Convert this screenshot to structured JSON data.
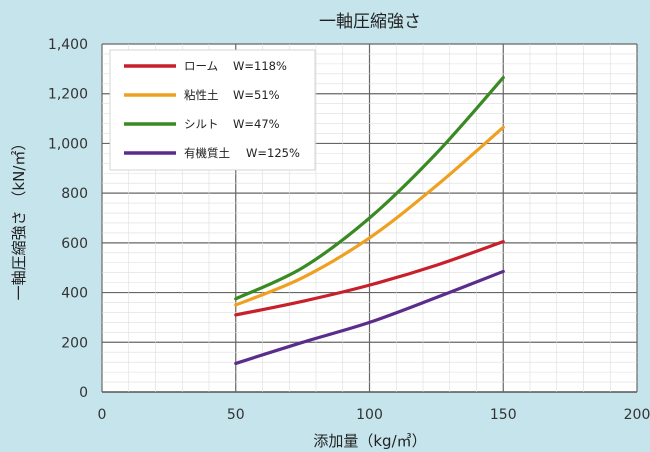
{
  "chart_data": {
    "type": "line",
    "title": "一軸圧縮強さ",
    "xlabel": "添加量（kg/㎥）",
    "ylabel": "一軸圧縮強さ （kN/㎡）",
    "xlim": [
      0,
      200
    ],
    "ylim": [
      0,
      1400
    ],
    "x_ticks": [
      "0",
      "50",
      "100",
      "150",
      "200"
    ],
    "y_ticks": [
      "0",
      "200",
      "400",
      "600",
      "800",
      "1,000",
      "1,200",
      "1,400"
    ],
    "grid": true,
    "legend_position": "top-left",
    "series": [
      {
        "name": "ローム",
        "w_label": "W=118%",
        "color": "#c8202a",
        "points": [
          [
            50,
            310
          ],
          [
            75,
            365
          ],
          [
            100,
            430
          ],
          [
            125,
            510
          ],
          [
            150,
            605
          ]
        ]
      },
      {
        "name": "粘性土",
        "w_label": "W=51%",
        "color": "#f0a020",
        "points": [
          [
            50,
            350
          ],
          [
            75,
            460
          ],
          [
            100,
            620
          ],
          [
            125,
            830
          ],
          [
            150,
            1065
          ]
        ]
      },
      {
        "name": "シルト",
        "w_label": "W=47%",
        "color": "#3a8a24",
        "points": [
          [
            50,
            375
          ],
          [
            75,
            500
          ],
          [
            100,
            700
          ],
          [
            125,
            960
          ],
          [
            150,
            1265
          ]
        ]
      },
      {
        "name": "有機質土",
        "w_label": "W=125%",
        "color": "#5a2c8c",
        "points": [
          [
            50,
            115
          ],
          [
            75,
            200
          ],
          [
            100,
            280
          ],
          [
            125,
            380
          ],
          [
            150,
            485
          ]
        ]
      }
    ]
  }
}
